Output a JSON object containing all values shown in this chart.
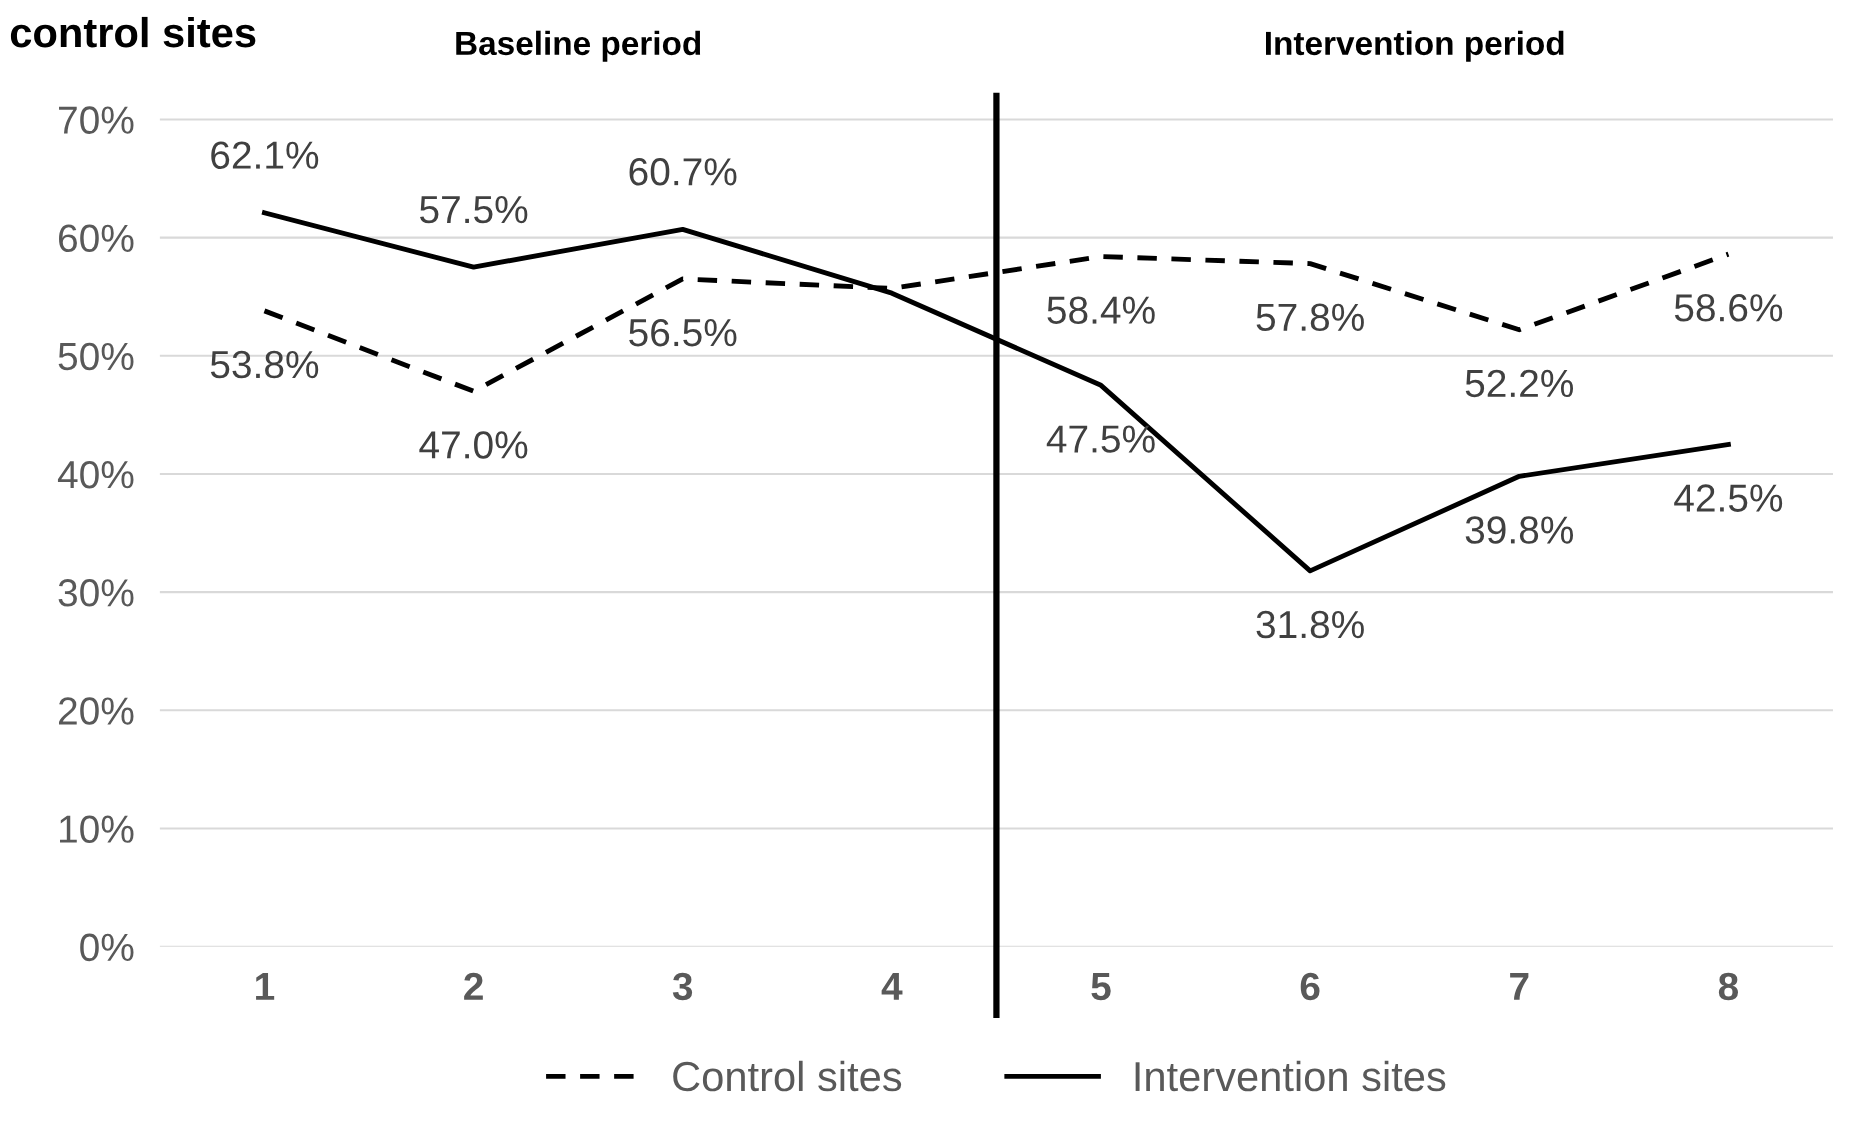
{
  "chart_data": {
    "type": "line",
    "title": "control sites",
    "annotations": [
      "Baseline period",
      "Intervention period"
    ],
    "x": [
      1,
      2,
      3,
      4,
      5,
      6,
      7,
      8
    ],
    "xlim": [
      0.5,
      8.5
    ],
    "xticks": [
      1,
      2,
      3,
      4,
      5,
      6,
      7,
      8
    ],
    "ylim": [
      0,
      72
    ],
    "yticks": [
      {
        "value": 0,
        "label": "0%"
      },
      {
        "value": 10,
        "label": "10%"
      },
      {
        "value": 20,
        "label": "20%"
      },
      {
        "value": 30,
        "label": "30%"
      },
      {
        "value": 40,
        "label": "40%"
      },
      {
        "value": 50,
        "label": "50%"
      },
      {
        "value": 60,
        "label": "60%"
      },
      {
        "value": 70,
        "label": "70%"
      }
    ],
    "series": [
      {
        "name": "Control sites",
        "color": "#000000",
        "line_style": "dashed",
        "values": [
          53.8,
          47.0,
          56.5,
          55.7,
          58.4,
          57.8,
          52.2,
          58.6
        ],
        "value_labels": [
          "53.8%",
          "47.0%",
          "56.5%",
          null,
          "58.4%",
          "57.8%",
          "52.2%",
          "58.6%"
        ]
      },
      {
        "name": "Intervention sites",
        "color": "#000000",
        "line_style": "solid",
        "values": [
          62.1,
          57.5,
          60.7,
          55.3,
          47.5,
          31.8,
          39.8,
          42.5
        ],
        "value_labels": [
          "62.1%",
          "57.5%",
          "60.7%",
          null,
          "47.5%",
          "31.8%",
          "39.8%",
          "42.5%"
        ]
      }
    ],
    "ref_lines": [
      {
        "axis": "x",
        "value": 4.5,
        "color": "#000000"
      }
    ],
    "grid": "y",
    "legend": "bottom",
    "marker": "none"
  }
}
